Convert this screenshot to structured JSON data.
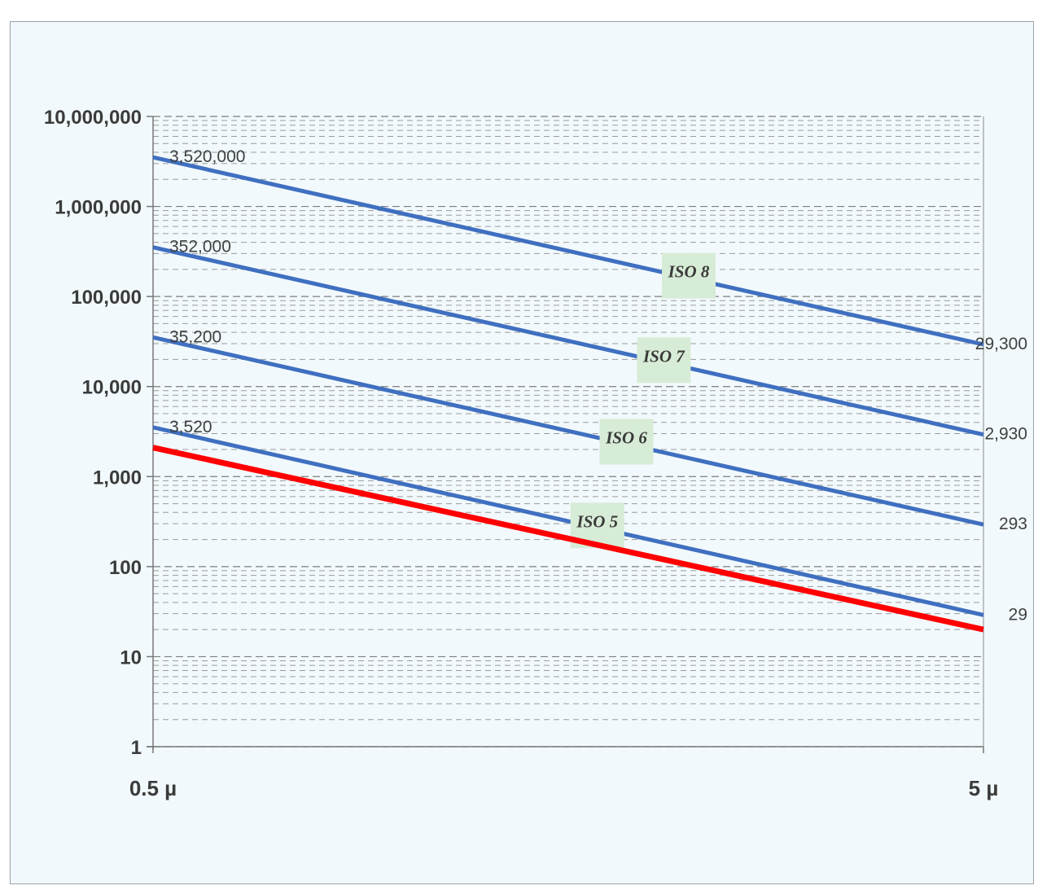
{
  "chart_data": {
    "type": "line",
    "title": "",
    "xlabel": "",
    "ylabel": "",
    "y_scale": "log",
    "ylim": [
      1,
      10000000
    ],
    "y_ticks": [
      1,
      10,
      100,
      1000,
      10000,
      100000,
      1000000,
      10000000
    ],
    "y_tick_labels": [
      "1",
      "10",
      "100",
      "1,000",
      "10,000",
      "100,000",
      "1,000,000",
      "10,000,000"
    ],
    "x_tick_labels": [
      "0.5 µ",
      "5 µ"
    ],
    "grid": true,
    "grid_style": "dashed",
    "series": [
      {
        "name": "ISO 8",
        "color": "#3f6fc0",
        "values": [
          3520000,
          29300
        ],
        "start_label": "3,520,000",
        "end_label": "29,300"
      },
      {
        "name": "ISO 7",
        "color": "#3f6fc0",
        "values": [
          352000,
          2930
        ],
        "start_label": "352,000",
        "end_label": "2,930"
      },
      {
        "name": "ISO 6",
        "color": "#3f6fc0",
        "values": [
          35200,
          293
        ],
        "start_label": "35,200",
        "end_label": "293"
      },
      {
        "name": "ISO 5",
        "color": "#3f6fc0",
        "values": [
          3520,
          29
        ],
        "start_label": "3,520",
        "end_label": "29"
      },
      {
        "color": "#ff0000",
        "values": [
          2100,
          20
        ]
      }
    ]
  }
}
